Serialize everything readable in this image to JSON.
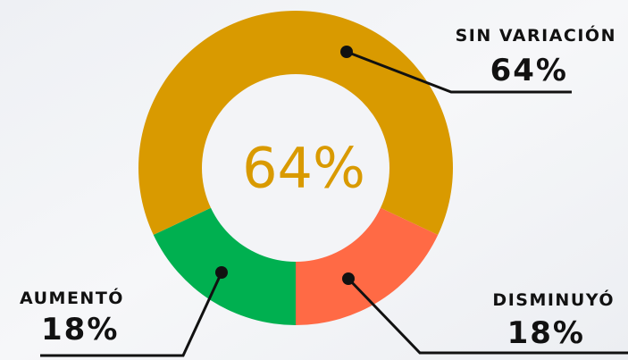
{
  "chart_data": {
    "type": "donut",
    "categories": [
      "DISMINUYÓ",
      "AUMENTÓ",
      "SIN VARIACIÓN"
    ],
    "values": [
      18,
      18,
      64
    ],
    "value_labels": [
      "18%",
      "18%",
      "64%"
    ],
    "colors": [
      "#FF6A45",
      "#00B050",
      "#D99A00"
    ],
    "center_label": "64%"
  }
}
